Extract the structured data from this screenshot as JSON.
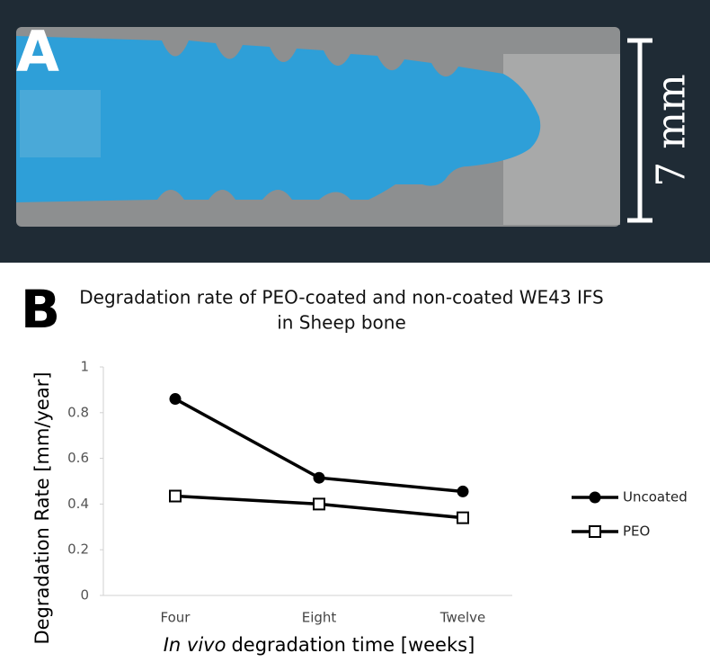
{
  "panels": {
    "a_label": "A",
    "scale_bar": "7 mm",
    "b_label": "B"
  },
  "chart_data": {
    "type": "line",
    "title": [
      "Degradation rate of PEO-coated and non-coated WE43 IFS",
      "in Sheep bone"
    ],
    "xlabel": [
      "In vivo",
      "degradation time [weeks]"
    ],
    "ylabel": "Degradation Rate [mm/year]",
    "categories": [
      "Four",
      "Eight",
      "Twelve"
    ],
    "series": [
      {
        "name": "Uncoated",
        "color": "#000000",
        "marker": "circle",
        "values": [
          0.86,
          0.515,
          0.455
        ]
      },
      {
        "name": "PEO",
        "color": "#000000",
        "marker": "square",
        "values": [
          0.435,
          0.4,
          0.34
        ]
      }
    ],
    "ylim": [
      0,
      1
    ],
    "yticks": [
      0,
      0.2,
      0.4,
      0.6,
      0.8,
      1
    ],
    "grid": false,
    "legend": "right"
  }
}
